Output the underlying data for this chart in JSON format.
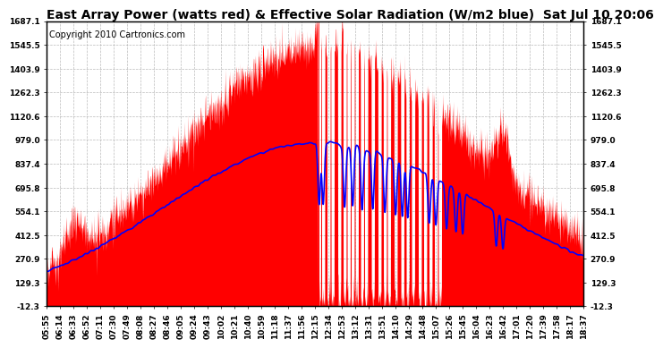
{
  "title": "East Array Power (watts red) & Effective Solar Radiation (W/m2 blue)  Sat Jul 10 20:06",
  "copyright": "Copyright 2010 Cartronics.com",
  "yticks": [
    1687.1,
    1545.5,
    1403.9,
    1262.3,
    1120.6,
    979.0,
    837.4,
    695.8,
    554.1,
    412.5,
    270.9,
    129.3,
    -12.3
  ],
  "ylim": [
    -12.3,
    1687.1
  ],
  "xtick_labels": [
    "05:55",
    "06:14",
    "06:33",
    "06:52",
    "07:11",
    "07:30",
    "07:49",
    "08:08",
    "08:27",
    "08:46",
    "09:05",
    "09:24",
    "09:43",
    "10:02",
    "10:21",
    "10:40",
    "10:59",
    "11:18",
    "11:37",
    "11:56",
    "12:15",
    "12:34",
    "12:53",
    "13:12",
    "13:31",
    "13:51",
    "14:10",
    "14:29",
    "14:48",
    "15:07",
    "15:26",
    "15:45",
    "16:04",
    "16:23",
    "16:42",
    "17:01",
    "17:20",
    "17:39",
    "17:58",
    "18:17",
    "18:37"
  ],
  "background_color": "#ffffff",
  "plot_bg_color": "#ffffff",
  "grid_color": "#aaaaaa",
  "red_color": "#ff0000",
  "blue_color": "#0000ff",
  "title_fontsize": 10,
  "tick_fontsize": 6.5,
  "copyright_fontsize": 7
}
